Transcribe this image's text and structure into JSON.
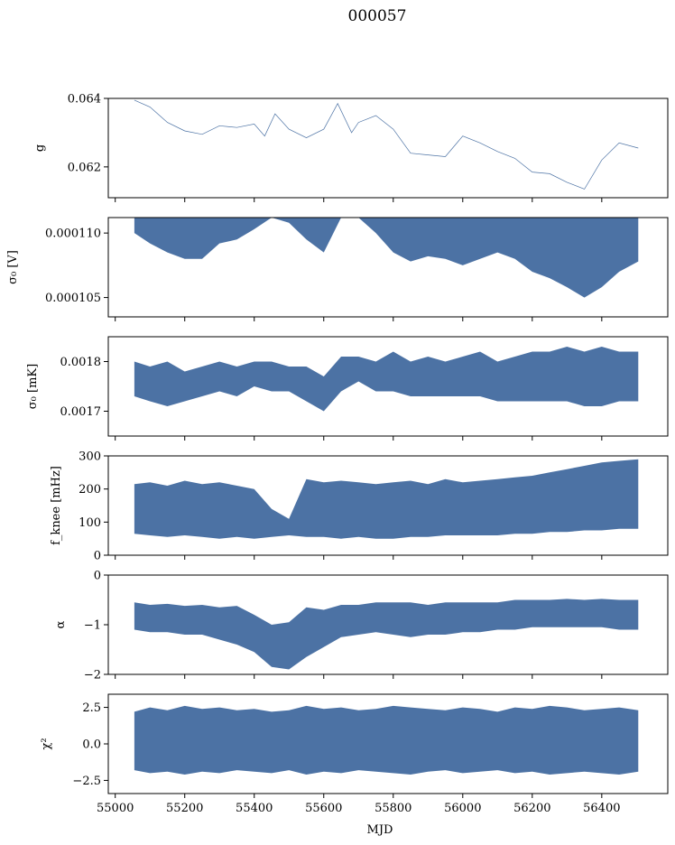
{
  "figure": {
    "suptitle": "000057",
    "xlabel": "MJD",
    "colors": {
      "series": "#4c72a4"
    }
  },
  "chart_data": [
    {
      "type": "line",
      "ylabel": "g",
      "xlim": [
        54980,
        56590
      ],
      "ylim": [
        0.0611,
        0.064
      ],
      "xticks": [
        55000,
        55200,
        55400,
        55600,
        55800,
        56000,
        56200,
        56400
      ],
      "yticks": [
        0.062,
        0.064
      ],
      "ytick_labels": [
        "0.062",
        "0.064"
      ],
      "series": [
        {
          "x": [
            55055,
            55100,
            55150,
            55200,
            55250,
            55300,
            55350,
            55400,
            55430,
            55460,
            55500,
            55550,
            55600,
            55640,
            55680,
            55700,
            55750,
            55800,
            55850,
            55900,
            55950,
            56000,
            56050,
            56100,
            56150,
            56200,
            56250,
            56300,
            56350,
            56400,
            56450,
            56505
          ],
          "y": [
            0.06395,
            0.06375,
            0.0633,
            0.06305,
            0.06295,
            0.0632,
            0.06315,
            0.06325,
            0.0629,
            0.06355,
            0.0631,
            0.06285,
            0.0631,
            0.06385,
            0.063,
            0.0633,
            0.0635,
            0.0631,
            0.0624,
            0.06235,
            0.0623,
            0.0629,
            0.0627,
            0.06245,
            0.06225,
            0.06185,
            0.0618,
            0.06155,
            0.06135,
            0.0622,
            0.0627,
            0.06255
          ]
        }
      ]
    },
    {
      "type": "area",
      "ylabel": "σ₀ [V]",
      "xlim": [
        54980,
        56590
      ],
      "ylim": [
        0.0001035,
        0.0001112
      ],
      "xticks": [
        55000,
        55200,
        55400,
        55600,
        55800,
        56000,
        56200,
        56400
      ],
      "yticks": [
        0.000105,
        0.00011
      ],
      "ytick_labels": [
        "0.000105",
        "0.000110"
      ],
      "series": [
        {
          "x": [
            55055,
            55100,
            55150,
            55200,
            55250,
            55300,
            55350,
            55400,
            55450,
            55500,
            55550,
            55600,
            55650,
            55700,
            55750,
            55800,
            55850,
            55900,
            55950,
            56000,
            56050,
            56100,
            56150,
            56200,
            56250,
            56300,
            56350,
            56400,
            56450,
            56505
          ],
          "upper": [
            0.0001112,
            0.0001112,
            0.0001112,
            0.0001112,
            0.0001112,
            0.0001112,
            0.0001112,
            0.0001112,
            0.0001112,
            0.0001112,
            0.0001112,
            0.0001112,
            0.0001112,
            0.0001112,
            0.0001112,
            0.0001112,
            0.0001112,
            0.0001112,
            0.0001112,
            0.0001112,
            0.0001112,
            0.0001112,
            0.0001112,
            0.0001112,
            0.0001112,
            0.0001112,
            0.0001112,
            0.0001112,
            0.0001112,
            0.0001112
          ],
          "lower": [
            0.00011,
            0.0001092,
            0.0001085,
            0.000108,
            0.000108,
            0.0001092,
            0.0001095,
            0.0001103,
            0.0001112,
            0.0001108,
            0.0001095,
            0.0001085,
            0.0001112,
            0.0001112,
            0.00011,
            0.0001085,
            0.0001078,
            0.0001082,
            0.000108,
            0.0001075,
            0.000108,
            0.0001085,
            0.000108,
            0.000107,
            0.0001065,
            0.0001058,
            0.000105,
            0.0001058,
            0.000107,
            0.0001078
          ]
        }
      ]
    },
    {
      "type": "area",
      "ylabel": "σ₀ [mK]",
      "xlim": [
        54980,
        56590
      ],
      "ylim": [
        0.00165,
        0.00185
      ],
      "xticks": [
        55000,
        55200,
        55400,
        55600,
        55800,
        56000,
        56200,
        56400
      ],
      "yticks": [
        0.0017,
        0.0018
      ],
      "ytick_labels": [
        "0.0017",
        "0.0018"
      ],
      "series": [
        {
          "x": [
            55055,
            55100,
            55150,
            55200,
            55250,
            55300,
            55350,
            55400,
            55450,
            55500,
            55550,
            55600,
            55650,
            55700,
            55750,
            55800,
            55850,
            55900,
            55950,
            56000,
            56050,
            56100,
            56150,
            56200,
            56250,
            56300,
            56350,
            56400,
            56450,
            56505
          ],
          "upper": [
            0.0018,
            0.00179,
            0.0018,
            0.00178,
            0.00179,
            0.0018,
            0.00179,
            0.0018,
            0.0018,
            0.00179,
            0.00179,
            0.00177,
            0.00181,
            0.00181,
            0.0018,
            0.00182,
            0.0018,
            0.00181,
            0.0018,
            0.00181,
            0.00182,
            0.0018,
            0.00181,
            0.00182,
            0.00182,
            0.00183,
            0.00182,
            0.00183,
            0.00182,
            0.00182
          ],
          "lower": [
            0.00173,
            0.00172,
            0.00171,
            0.00172,
            0.00173,
            0.00174,
            0.00173,
            0.00175,
            0.00174,
            0.00174,
            0.00172,
            0.0017,
            0.00174,
            0.00176,
            0.00174,
            0.00174,
            0.00173,
            0.00173,
            0.00173,
            0.00173,
            0.00173,
            0.00172,
            0.00172,
            0.00172,
            0.00172,
            0.00172,
            0.00171,
            0.00171,
            0.00172,
            0.00172
          ]
        }
      ]
    },
    {
      "type": "area",
      "ylabel": "f_knee [mHz]",
      "xlim": [
        54980,
        56590
      ],
      "ylim": [
        0,
        300
      ],
      "xticks": [
        55000,
        55200,
        55400,
        55600,
        55800,
        56000,
        56200,
        56400
      ],
      "yticks": [
        0,
        100,
        200,
        300
      ],
      "ytick_labels": [
        "0",
        "100",
        "200",
        "300"
      ],
      "series": [
        {
          "x": [
            55055,
            55100,
            55150,
            55200,
            55250,
            55300,
            55350,
            55400,
            55450,
            55500,
            55550,
            55600,
            55650,
            55700,
            55750,
            55800,
            55850,
            55900,
            55950,
            56000,
            56050,
            56100,
            56150,
            56200,
            56250,
            56300,
            56350,
            56400,
            56450,
            56505
          ],
          "upper": [
            215,
            220,
            210,
            225,
            215,
            220,
            210,
            200,
            140,
            110,
            230,
            220,
            225,
            220,
            215,
            220,
            225,
            215,
            230,
            220,
            225,
            230,
            235,
            240,
            250,
            260,
            270,
            280,
            285,
            290
          ],
          "lower": [
            65,
            60,
            55,
            60,
            55,
            50,
            55,
            50,
            55,
            60,
            55,
            55,
            50,
            55,
            50,
            50,
            55,
            55,
            60,
            60,
            60,
            60,
            65,
            65,
            70,
            70,
            75,
            75,
            80,
            80
          ]
        }
      ]
    },
    {
      "type": "area",
      "ylabel": "α",
      "xlim": [
        54980,
        56590
      ],
      "ylim": [
        -2,
        0
      ],
      "xticks": [
        55000,
        55200,
        55400,
        55600,
        55800,
        56000,
        56200,
        56400
      ],
      "yticks": [
        -2,
        -1,
        0
      ],
      "ytick_labels": [
        "−2",
        "−1",
        "0"
      ],
      "series": [
        {
          "x": [
            55055,
            55100,
            55150,
            55200,
            55250,
            55300,
            55350,
            55400,
            55450,
            55500,
            55550,
            55600,
            55650,
            55700,
            55750,
            55800,
            55850,
            55900,
            55950,
            56000,
            56050,
            56100,
            56150,
            56200,
            56250,
            56300,
            56350,
            56400,
            56450,
            56505
          ],
          "upper": [
            -0.55,
            -0.6,
            -0.58,
            -0.62,
            -0.6,
            -0.65,
            -0.62,
            -0.8,
            -1.0,
            -0.95,
            -0.65,
            -0.7,
            -0.6,
            -0.6,
            -0.55,
            -0.55,
            -0.55,
            -0.6,
            -0.55,
            -0.55,
            -0.55,
            -0.55,
            -0.5,
            -0.5,
            -0.5,
            -0.48,
            -0.5,
            -0.48,
            -0.5,
            -0.5
          ],
          "lower": [
            -1.1,
            -1.15,
            -1.15,
            -1.2,
            -1.2,
            -1.3,
            -1.4,
            -1.55,
            -1.85,
            -1.9,
            -1.65,
            -1.45,
            -1.25,
            -1.2,
            -1.15,
            -1.2,
            -1.25,
            -1.2,
            -1.2,
            -1.15,
            -1.15,
            -1.1,
            -1.1,
            -1.05,
            -1.05,
            -1.05,
            -1.05,
            -1.05,
            -1.1,
            -1.1
          ]
        }
      ]
    },
    {
      "type": "area",
      "ylabel": "χ²",
      "xlim": [
        54980,
        56590
      ],
      "ylim": [
        -3.4,
        3.4
      ],
      "xticks": [
        55000,
        55200,
        55400,
        55600,
        55800,
        56000,
        56200,
        56400
      ],
      "xtick_labels": [
        "55000",
        "55200",
        "55400",
        "55600",
        "55800",
        "56000",
        "56200",
        "56400"
      ],
      "yticks": [
        -2.5,
        0.0,
        2.5
      ],
      "ytick_labels": [
        "−2.5",
        "0.0",
        "2.5"
      ],
      "series": [
        {
          "x": [
            55055,
            55100,
            55150,
            55200,
            55250,
            55300,
            55350,
            55400,
            55450,
            55500,
            55550,
            55600,
            55650,
            55700,
            55750,
            55800,
            55850,
            55900,
            55950,
            56000,
            56050,
            56100,
            56150,
            56200,
            56250,
            56300,
            56350,
            56400,
            56450,
            56505
          ],
          "upper": [
            2.2,
            2.5,
            2.3,
            2.6,
            2.4,
            2.5,
            2.3,
            2.4,
            2.2,
            2.3,
            2.6,
            2.4,
            2.5,
            2.3,
            2.4,
            2.6,
            2.5,
            2.4,
            2.3,
            2.5,
            2.4,
            2.2,
            2.5,
            2.4,
            2.6,
            2.5,
            2.3,
            2.4,
            2.5,
            2.3
          ],
          "lower": [
            -1.8,
            -2.0,
            -1.9,
            -2.1,
            -1.9,
            -2.0,
            -1.8,
            -1.9,
            -2.0,
            -1.8,
            -2.1,
            -1.9,
            -2.0,
            -1.8,
            -1.9,
            -2.0,
            -2.1,
            -1.9,
            -1.8,
            -2.0,
            -1.9,
            -1.8,
            -2.0,
            -1.9,
            -2.1,
            -2.0,
            -1.9,
            -2.0,
            -2.1,
            -1.9
          ]
        }
      ]
    }
  ]
}
